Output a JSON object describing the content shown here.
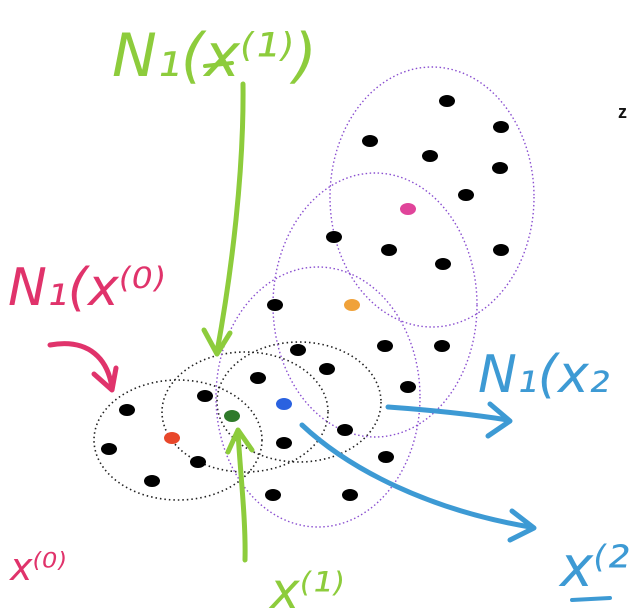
{
  "labels": {
    "n1_x1": "N₁(x⁽¹⁾)",
    "n1_x0": "N₁(x⁽⁰⁾",
    "n1_x2": "N₁(x₂",
    "x2": "x⁽²",
    "x0": "x⁽⁰⁾",
    "x1": "x⁽¹⁾",
    "z": "z"
  },
  "colors": {
    "handwriting_green": "#8dcc3c",
    "handwriting_pink": "#e0336b",
    "handwriting_blue": "#3d9ad4",
    "ellipse_black": "#222222",
    "ellipse_purple": "#8a4fd0",
    "point_black": "#000000",
    "point_x0": "#e8472a",
    "point_x1": "#2f7a2a",
    "point_x2": "#2a62e0",
    "point_orange": "#f0a23a",
    "point_magenta": "#e0449a"
  }
}
